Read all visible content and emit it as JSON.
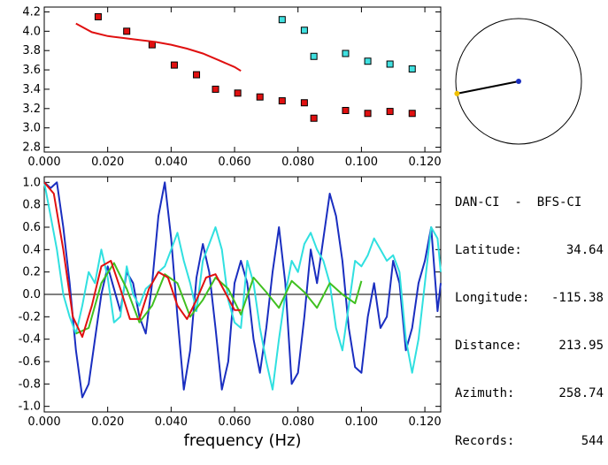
{
  "info_panel": {
    "header": "DAN-CI  -  BFS-CI",
    "rows": [
      {
        "label": "Latitude:",
        "value": "34.64"
      },
      {
        "label": "Longitude:",
        "value": "-115.38"
      },
      {
        "label": "Distance:",
        "value": "213.95"
      },
      {
        "label": "Azimuth:",
        "value": "258.74"
      },
      {
        "label": "Records:",
        "value": "544"
      }
    ]
  },
  "chart_data": [
    {
      "type": "scatter",
      "panel": "dispersion",
      "xlim": [
        0.0,
        0.125
      ],
      "ylim": [
        2.75,
        4.25
      ],
      "x_ticks": [
        "0.000",
        "0.020",
        "0.040",
        "0.060",
        "0.080",
        "0.100",
        "0.120"
      ],
      "y_ticks": [
        "2.8",
        "3.0",
        "3.2",
        "3.4",
        "3.6",
        "3.8",
        "4.0",
        "4.2"
      ],
      "colors": {
        "red": "#e01010",
        "cyan": "#40e0e0"
      },
      "series": [
        {
          "color": "red",
          "marker": "square",
          "x": [
            0.017,
            0.026,
            0.034,
            0.041,
            0.048,
            0.054,
            0.061,
            0.068,
            0.075,
            0.082,
            0.085,
            0.095,
            0.102,
            0.109,
            0.116
          ],
          "y": [
            4.15,
            4.0,
            3.86,
            3.65,
            3.55,
            3.4,
            3.36,
            3.32,
            3.28,
            3.26,
            3.1,
            3.18,
            3.15,
            3.17,
            3.15
          ]
        },
        {
          "color": "cyan",
          "marker": "square",
          "x": [
            0.075,
            0.082,
            0.085,
            0.095,
            0.102,
            0.109,
            0.116
          ],
          "y": [
            4.12,
            4.01,
            3.74,
            3.77,
            3.69,
            3.66,
            3.61
          ]
        },
        {
          "color": "red",
          "style": "line",
          "x": [
            0.01,
            0.015,
            0.02,
            0.025,
            0.03,
            0.035,
            0.04,
            0.045,
            0.05,
            0.055,
            0.06,
            0.062
          ],
          "y": [
            4.08,
            3.99,
            3.95,
            3.93,
            3.91,
            3.89,
            3.86,
            3.82,
            3.77,
            3.7,
            3.63,
            3.59
          ]
        }
      ]
    },
    {
      "type": "line",
      "panel": "correlation",
      "xlabel": "frequency (Hz)",
      "xlim": [
        0.0,
        0.125
      ],
      "ylim": [
        -1.05,
        1.05
      ],
      "x_ticks": [
        "0.000",
        "0.020",
        "0.040",
        "0.060",
        "0.080",
        "0.100",
        "0.120"
      ],
      "y_ticks": [
        "1.0",
        "0.8",
        "0.6",
        "0.4",
        "0.2",
        "0.0",
        "-0.2",
        "-0.4",
        "-0.6",
        "-0.8",
        "-1.0"
      ],
      "series": [
        {
          "color": "#1a2ec0",
          "x": [
            0.0,
            0.002,
            0.004,
            0.006,
            0.008,
            0.01,
            0.012,
            0.014,
            0.016,
            0.018,
            0.02,
            0.022,
            0.024,
            0.026,
            0.028,
            0.03,
            0.032,
            0.034,
            0.036,
            0.038,
            0.04,
            0.042,
            0.044,
            0.046,
            0.048,
            0.05,
            0.052,
            0.054,
            0.056,
            0.058,
            0.06,
            0.062,
            0.064,
            0.066,
            0.068,
            0.07,
            0.072,
            0.074,
            0.076,
            0.078,
            0.08,
            0.082,
            0.084,
            0.086,
            0.088,
            0.09,
            0.092,
            0.094,
            0.096,
            0.098,
            0.1,
            0.102,
            0.104,
            0.106,
            0.108,
            0.11,
            0.112,
            0.114,
            0.116,
            0.118,
            0.12,
            0.122,
            0.124,
            0.125
          ],
          "y": [
            1.0,
            0.95,
            1.0,
            0.6,
            0.1,
            -0.5,
            -0.92,
            -0.8,
            -0.4,
            0.0,
            0.25,
            0.05,
            -0.15,
            0.2,
            0.1,
            -0.2,
            -0.35,
            0.1,
            0.7,
            1.0,
            0.5,
            -0.2,
            -0.85,
            -0.5,
            0.15,
            0.45,
            0.2,
            -0.3,
            -0.85,
            -0.6,
            0.1,
            0.3,
            0.1,
            -0.4,
            -0.7,
            -0.3,
            0.2,
            0.6,
            0.1,
            -0.8,
            -0.7,
            -0.2,
            0.4,
            0.1,
            0.5,
            0.9,
            0.7,
            0.3,
            -0.3,
            -0.65,
            -0.7,
            -0.2,
            0.1,
            -0.3,
            -0.2,
            0.3,
            0.1,
            -0.5,
            -0.3,
            0.1,
            0.3,
            0.6,
            -0.15,
            0.1
          ]
        },
        {
          "color": "#30e0e0",
          "x": [
            0.0,
            0.002,
            0.004,
            0.006,
            0.008,
            0.01,
            0.012,
            0.014,
            0.016,
            0.018,
            0.02,
            0.022,
            0.024,
            0.026,
            0.028,
            0.03,
            0.032,
            0.034,
            0.036,
            0.038,
            0.04,
            0.042,
            0.044,
            0.046,
            0.048,
            0.05,
            0.052,
            0.054,
            0.056,
            0.058,
            0.06,
            0.062,
            0.064,
            0.066,
            0.068,
            0.07,
            0.072,
            0.074,
            0.076,
            0.078,
            0.08,
            0.082,
            0.084,
            0.086,
            0.088,
            0.09,
            0.092,
            0.094,
            0.096,
            0.098,
            0.1,
            0.102,
            0.104,
            0.106,
            0.108,
            0.11,
            0.112,
            0.114,
            0.116,
            0.118,
            0.12,
            0.122,
            0.124,
            0.125
          ],
          "y": [
            1.0,
            0.7,
            0.4,
            0.0,
            -0.2,
            -0.35,
            -0.1,
            0.2,
            0.1,
            0.4,
            0.15,
            -0.25,
            -0.2,
            0.25,
            0.0,
            -0.1,
            0.05,
            0.1,
            0.2,
            0.25,
            0.4,
            0.55,
            0.3,
            0.1,
            -0.15,
            0.3,
            0.45,
            0.6,
            0.4,
            -0.05,
            -0.25,
            -0.3,
            0.3,
            0.1,
            -0.3,
            -0.6,
            -0.85,
            -0.4,
            0.0,
            0.3,
            0.2,
            0.45,
            0.55,
            0.4,
            0.3,
            0.1,
            -0.3,
            -0.5,
            -0.1,
            0.3,
            0.25,
            0.35,
            0.5,
            0.4,
            0.3,
            0.35,
            0.2,
            -0.4,
            -0.7,
            -0.4,
            0.1,
            0.6,
            0.5,
            0.2
          ]
        },
        {
          "color": "#40c020",
          "x": [
            0.01,
            0.014,
            0.018,
            0.022,
            0.026,
            0.03,
            0.034,
            0.038,
            0.042,
            0.046,
            0.05,
            0.054,
            0.058,
            0.062,
            0.066,
            0.07,
            0.074,
            0.078,
            0.082,
            0.086,
            0.09,
            0.094,
            0.098,
            0.1
          ],
          "y": [
            -0.35,
            -0.3,
            0.1,
            0.28,
            0.05,
            -0.25,
            -0.1,
            0.18,
            0.1,
            -0.2,
            -0.05,
            0.15,
            0.05,
            -0.18,
            0.15,
            0.02,
            -0.12,
            0.12,
            0.02,
            -0.12,
            0.1,
            0.0,
            -0.08,
            0.12
          ]
        },
        {
          "color": "#e01010",
          "x": [
            0.0,
            0.003,
            0.006,
            0.009,
            0.012,
            0.015,
            0.018,
            0.021,
            0.024,
            0.027,
            0.03,
            0.033,
            0.036,
            0.039,
            0.042,
            0.045,
            0.048,
            0.051,
            0.054,
            0.057,
            0.06,
            0.062
          ],
          "y": [
            1.0,
            0.9,
            0.4,
            -0.2,
            -0.38,
            -0.1,
            0.25,
            0.3,
            0.05,
            -0.22,
            -0.22,
            0.05,
            0.2,
            0.15,
            -0.1,
            -0.22,
            -0.05,
            0.15,
            0.18,
            0.02,
            -0.14,
            -0.14
          ]
        }
      ]
    }
  ],
  "compass": {
    "azimuth_deg": 258.74
  }
}
